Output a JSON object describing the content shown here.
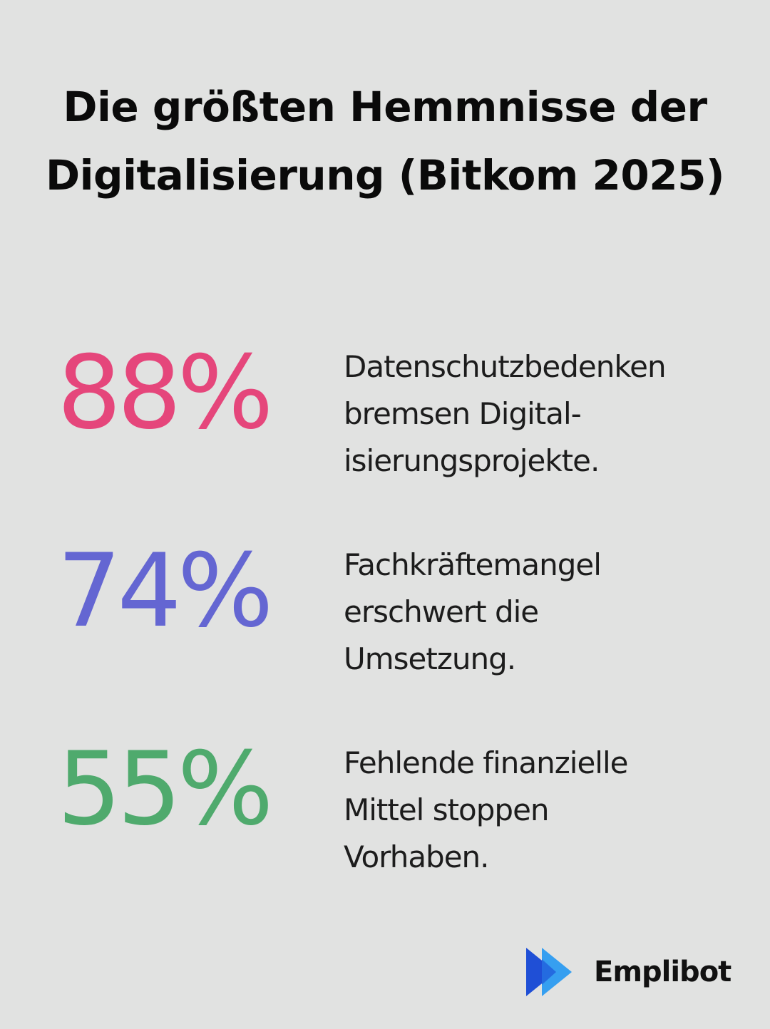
{
  "header": {
    "title": "Die größten Hemmnisse der Digitalisierung (Bitkom 2025)"
  },
  "stats": [
    {
      "value": "88%",
      "color": "#e5467b",
      "lines": [
        "Datenschutzbedenken",
        "bremsen Digital-",
        "isierungsprojekte."
      ]
    },
    {
      "value": "74%",
      "color": "#6466d2",
      "lines": [
        "Fachkräftemangel",
        "erschwert die",
        "Umsetzung."
      ]
    },
    {
      "value": "55%",
      "color": "#4faa6d",
      "lines": [
        "Fehlende finanzielle",
        "Mittel stoppen",
        "Vorhaben."
      ]
    }
  ],
  "brand": {
    "name": "Emplibot",
    "icon": "play-arrows-logo-icon",
    "colors": [
      "#1f4fd6",
      "#2c9bf0"
    ]
  }
}
